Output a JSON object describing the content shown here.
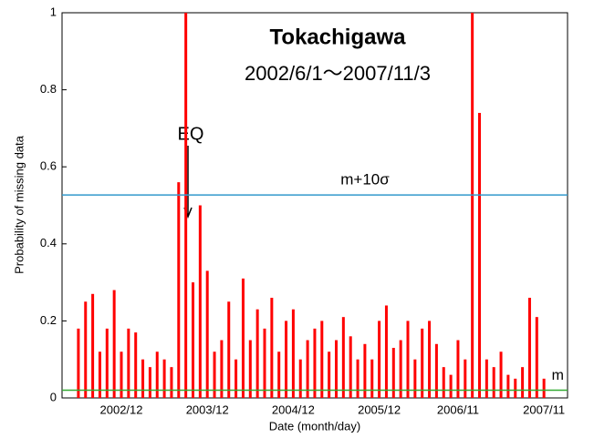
{
  "chart_data": {
    "type": "bar",
    "title": "Tokachigawa",
    "subtitle": "2002/6/1〜2007/11/3",
    "y_label": "Probability of missing data",
    "x_label": "Date (month/day)",
    "annotation": "EQ",
    "x": [
      "2002/06",
      "2002/07",
      "2002/08",
      "2002/09",
      "2002/10",
      "2002/11",
      "2002/12",
      "2003/01",
      "2003/02",
      "2003/03",
      "2003/04",
      "2003/05",
      "2003/06",
      "2003/07",
      "2003/08",
      "2003/09",
      "2003/10",
      "2003/11",
      "2003/12",
      "2004/01",
      "2004/02",
      "2004/03",
      "2004/04",
      "2004/05",
      "2004/06",
      "2004/07",
      "2004/08",
      "2004/09",
      "2004/10",
      "2004/11",
      "2004/12",
      "2005/01",
      "2005/02",
      "2005/03",
      "2005/04",
      "2005/05",
      "2005/06",
      "2005/07",
      "2005/08",
      "2005/09",
      "2005/10",
      "2005/11",
      "2005/12",
      "2006/01",
      "2006/02",
      "2006/03",
      "2006/04",
      "2006/05",
      "2006/06",
      "2006/07",
      "2006/08",
      "2006/09",
      "2006/10",
      "2006/11",
      "2006/12",
      "2007/01",
      "2007/02",
      "2007/03",
      "2007/04",
      "2007/05",
      "2007/06",
      "2007/07",
      "2007/08",
      "2007/09",
      "2007/10",
      "2007/11"
    ],
    "values": [
      0.18,
      0.25,
      0.27,
      0.12,
      0.18,
      0.28,
      0.12,
      0.18,
      0.17,
      0.1,
      0.08,
      0.12,
      0.1,
      0.08,
      0.56,
      1,
      0.3,
      0.5,
      0.33,
      0.12,
      0.15,
      0.25,
      0.1,
      0.31,
      0.15,
      0.23,
      0.18,
      0.26,
      0.12,
      0.2,
      0.23,
      0.1,
      0.15,
      0.18,
      0.2,
      0.12,
      0.15,
      0.21,
      0.16,
      0.1,
      0.14,
      0.1,
      0.2,
      0.24,
      0.13,
      0.15,
      0.2,
      0.1,
      0.18,
      0.2,
      0.14,
      0.08,
      0.06,
      0.15,
      0.1,
      1,
      0.74,
      0.1,
      0.08,
      0.12,
      0.06,
      0.05,
      0.08,
      0.26,
      0.21,
      0.05
    ],
    "color": "#ff0000",
    "xticks": [
      "2002/12",
      "2003/12",
      "2004/12",
      "2005/12",
      "2006/11",
      "2007/11"
    ],
    "ylim": [
      0,
      1
    ],
    "yticks": [
      0,
      0.2,
      0.4,
      0.6,
      0.8,
      1
    ],
    "reference_lines": [
      {
        "label": "m+10σ",
        "value": 0.527,
        "color": "#3399cc"
      },
      {
        "label": "m",
        "value": 0.02,
        "color": "#33aa33"
      }
    ]
  }
}
